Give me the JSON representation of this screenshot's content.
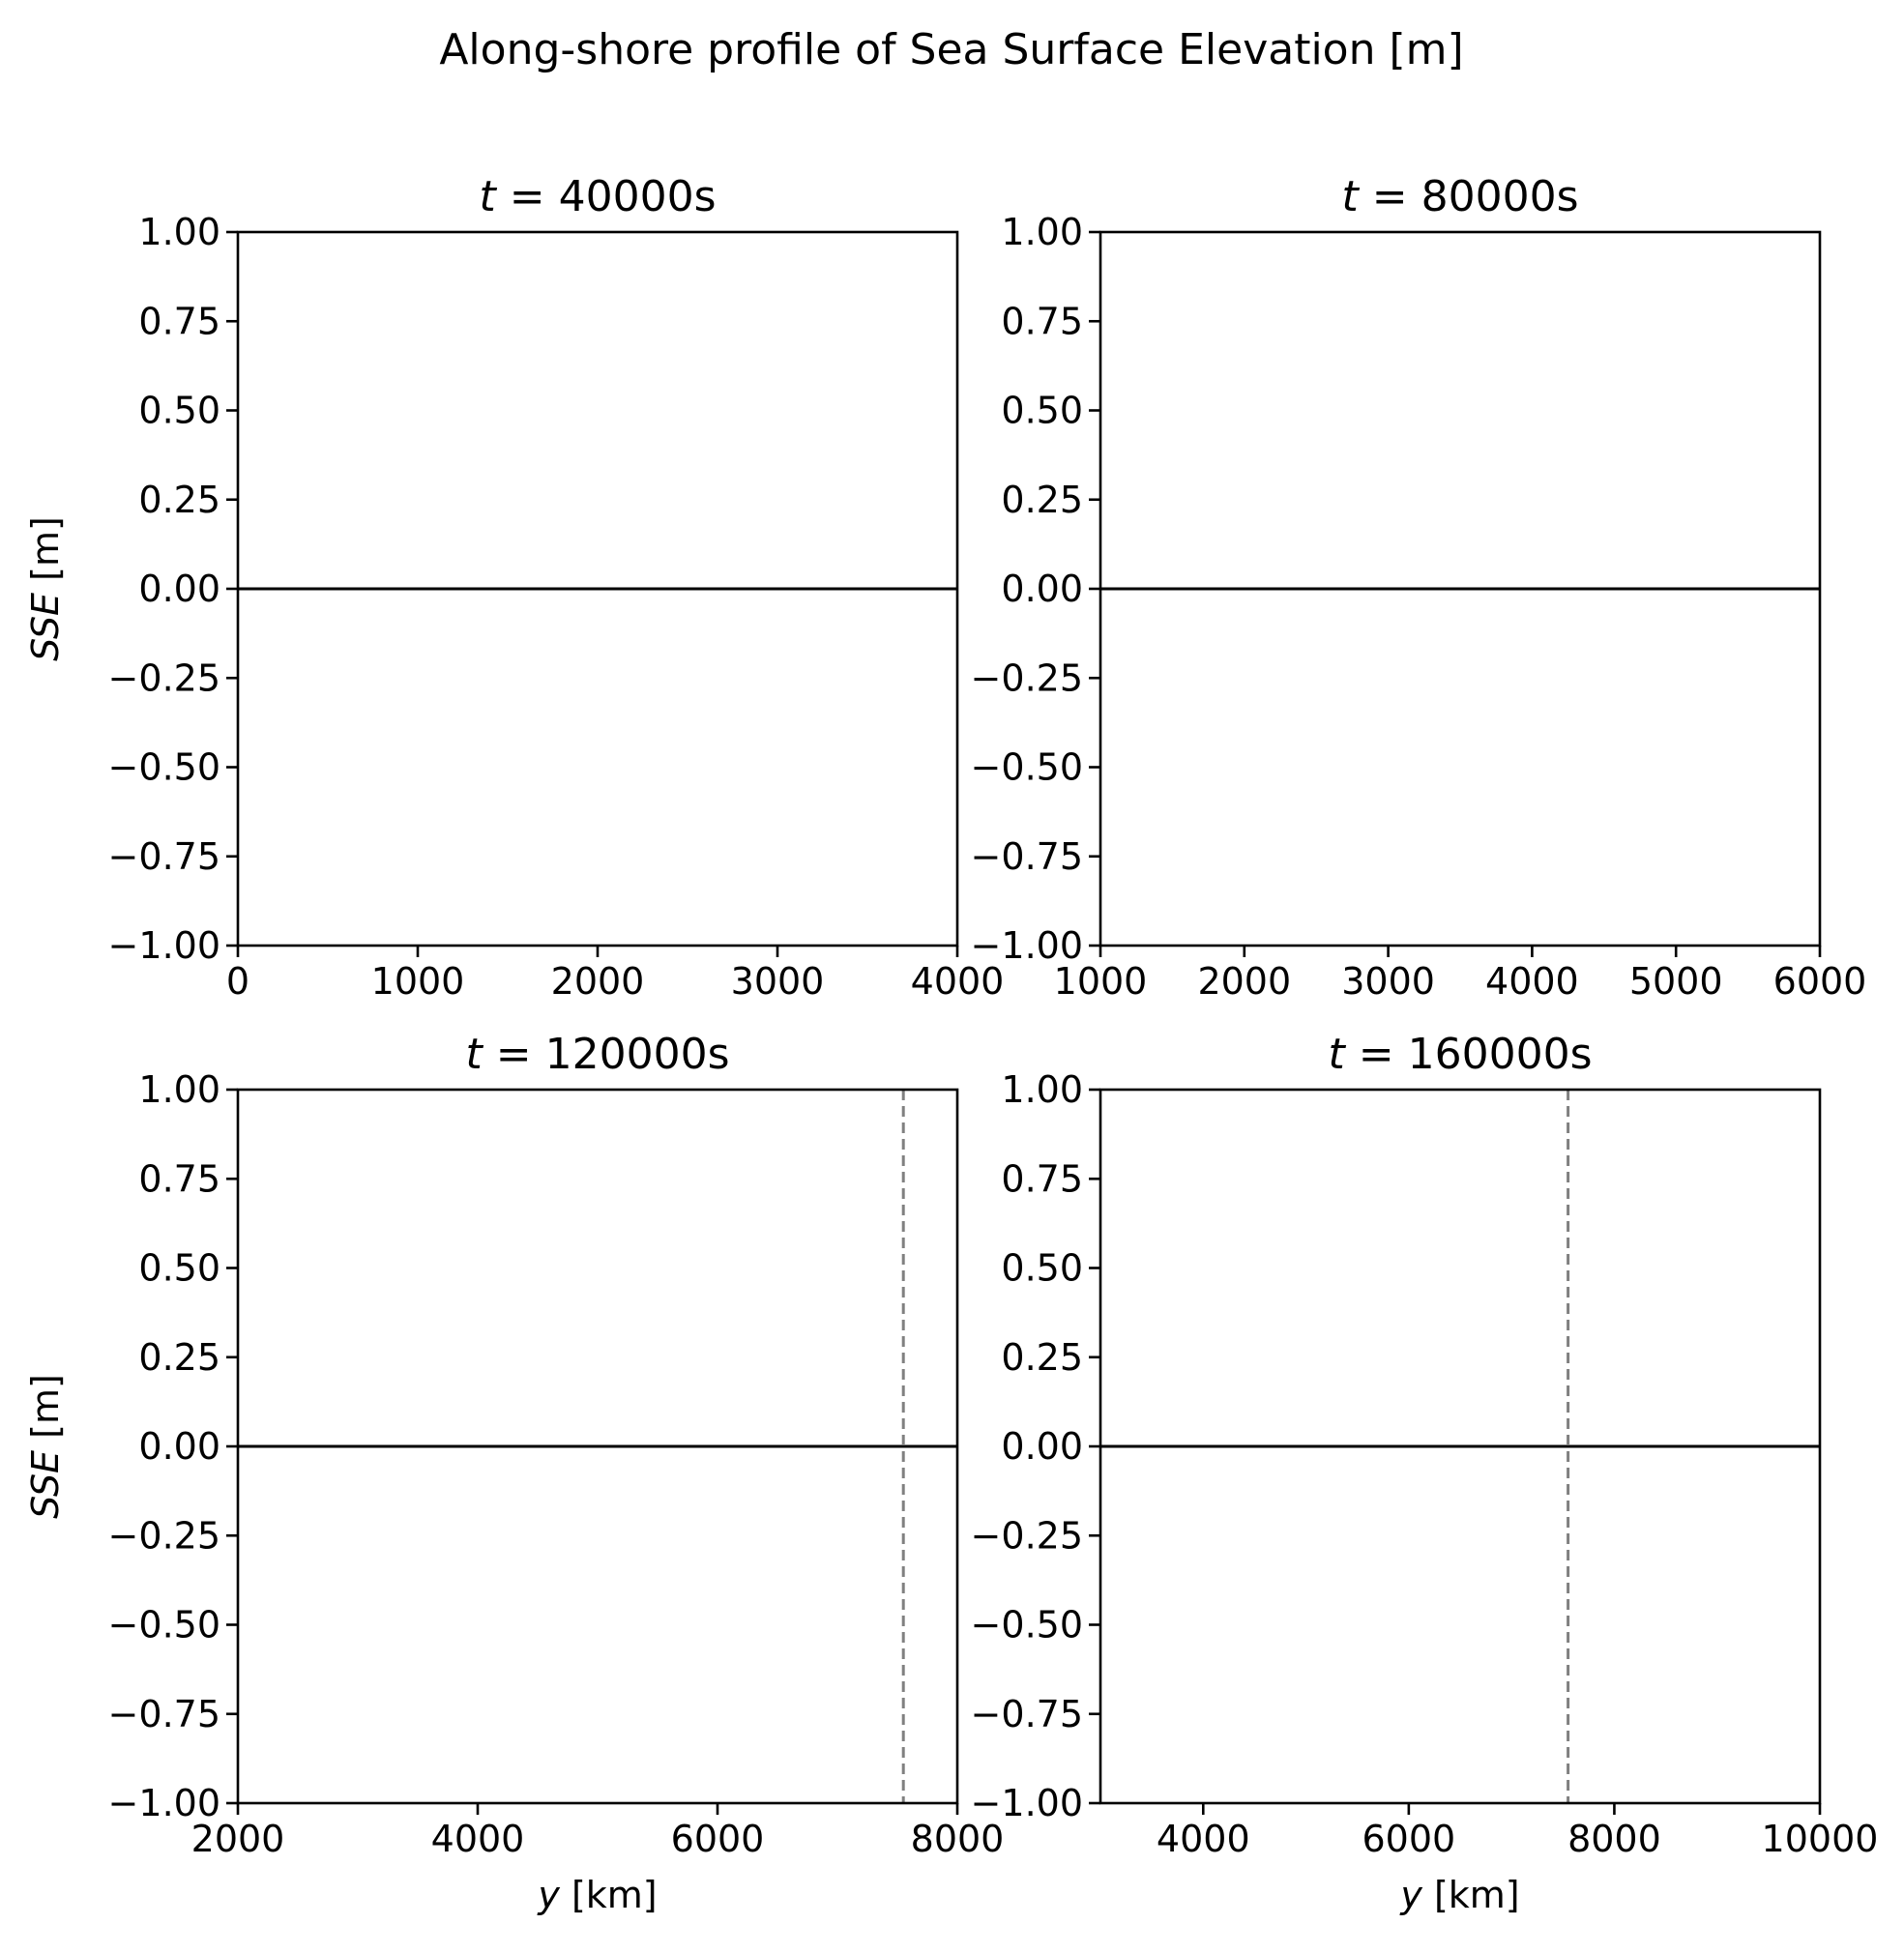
{
  "figure": {
    "suptitle": "Along-shore profile of Sea Surface Elevation [m]"
  },
  "chart_data": [
    {
      "type": "line",
      "title": "t = 40000s",
      "xlabel": "",
      "ylabel": "SSE [m]",
      "xlim": [
        0,
        4000
      ],
      "ylim": [
        -1.0,
        1.0
      ],
      "xticks": [
        0,
        1000,
        2000,
        3000,
        4000
      ],
      "yticks": [
        -1.0,
        -0.75,
        -0.5,
        -0.25,
        0.0,
        0.25,
        0.5,
        0.75,
        1.0
      ],
      "grid": false,
      "series": [
        {
          "x": [
            0,
            4000
          ],
          "y": [
            0.0,
            0.0
          ],
          "color": "#000000"
        }
      ],
      "vlines": []
    },
    {
      "type": "line",
      "title": "t = 80000s",
      "xlabel": "",
      "ylabel": "",
      "xlim": [
        1000,
        6000
      ],
      "ylim": [
        -1.0,
        1.0
      ],
      "xticks": [
        1000,
        2000,
        3000,
        4000,
        5000,
        6000
      ],
      "yticks": [
        -1.0,
        -0.75,
        -0.5,
        -0.25,
        0.0,
        0.25,
        0.5,
        0.75,
        1.0
      ],
      "grid": false,
      "series": [
        {
          "x": [
            1000,
            6000
          ],
          "y": [
            0.0,
            0.0
          ],
          "color": "#000000"
        }
      ],
      "vlines": []
    },
    {
      "type": "line",
      "title": "t = 120000s",
      "xlabel": "y [km]",
      "ylabel": "SSE [m]",
      "xlim": [
        2000,
        8000
      ],
      "ylim": [
        -1.0,
        1.0
      ],
      "xticks": [
        2000,
        4000,
        6000,
        8000
      ],
      "yticks": [
        -1.0,
        -0.75,
        -0.5,
        -0.25,
        0.0,
        0.25,
        0.5,
        0.75,
        1.0
      ],
      "grid": false,
      "series": [
        {
          "x": [
            2000,
            8000
          ],
          "y": [
            0.0,
            0.0
          ],
          "color": "#000000"
        }
      ],
      "vlines": [
        {
          "x": 7550,
          "style": "dashed",
          "color": "#808080"
        }
      ]
    },
    {
      "type": "line",
      "title": "t = 160000s",
      "xlabel": "y [km]",
      "ylabel": "",
      "xlim": [
        3000,
        10000
      ],
      "ylim": [
        -1.0,
        1.0
      ],
      "xticks": [
        4000,
        6000,
        8000,
        10000
      ],
      "yticks": [
        -1.0,
        -0.75,
        -0.5,
        -0.25,
        0.0,
        0.25,
        0.5,
        0.75,
        1.0
      ],
      "grid": false,
      "series": [
        {
          "x": [
            3000,
            10000
          ],
          "y": [
            0.0,
            0.0
          ],
          "color": "#000000"
        }
      ],
      "vlines": [
        {
          "x": 7550,
          "style": "dashed",
          "color": "#808080"
        }
      ]
    }
  ]
}
